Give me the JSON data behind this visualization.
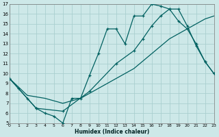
{
  "bg_color": "#cde8e8",
  "grid_color": "#aacfcf",
  "line_color": "#006060",
  "xlabel": "Humidex (Indice chaleur)",
  "ylim": [
    5,
    17
  ],
  "xlim": [
    0,
    23
  ],
  "yticks": [
    5,
    6,
    7,
    8,
    9,
    10,
    11,
    12,
    13,
    14,
    15,
    16,
    17
  ],
  "xticks": [
    0,
    1,
    2,
    3,
    4,
    5,
    6,
    7,
    8,
    9,
    10,
    11,
    12,
    13,
    14,
    15,
    16,
    17,
    18,
    19,
    20,
    21,
    22,
    23
  ],
  "line1_x": [
    0,
    1,
    2,
    3,
    4,
    5,
    6,
    7,
    8,
    9,
    10,
    11,
    12,
    13,
    14,
    15,
    16,
    17,
    18,
    19,
    20,
    21,
    22,
    23
  ],
  "line1_y": [
    9.5,
    8.5,
    7.5,
    6.5,
    6.0,
    5.7,
    5.0,
    7.5,
    7.5,
    9.8,
    12.0,
    14.5,
    14.5,
    13.0,
    15.8,
    15.8,
    17.0,
    16.8,
    16.5,
    15.3,
    14.5,
    13.0,
    11.2,
    10.0
  ],
  "line2_x": [
    0,
    3,
    6,
    9,
    12,
    14,
    15,
    16,
    17,
    18,
    19,
    20,
    21,
    22,
    23
  ],
  "line2_y": [
    9.5,
    6.5,
    6.2,
    8.2,
    11.0,
    12.3,
    13.5,
    14.8,
    15.8,
    16.5,
    16.5,
    14.8,
    12.8,
    11.2,
    10.0
  ],
  "line3_x": [
    0,
    2,
    4,
    6,
    8,
    10,
    12,
    14,
    16,
    18,
    20,
    22,
    23
  ],
  "line3_y": [
    9.5,
    7.8,
    7.5,
    7.0,
    7.5,
    8.5,
    9.5,
    10.5,
    12.0,
    13.5,
    14.5,
    15.5,
    15.8
  ]
}
